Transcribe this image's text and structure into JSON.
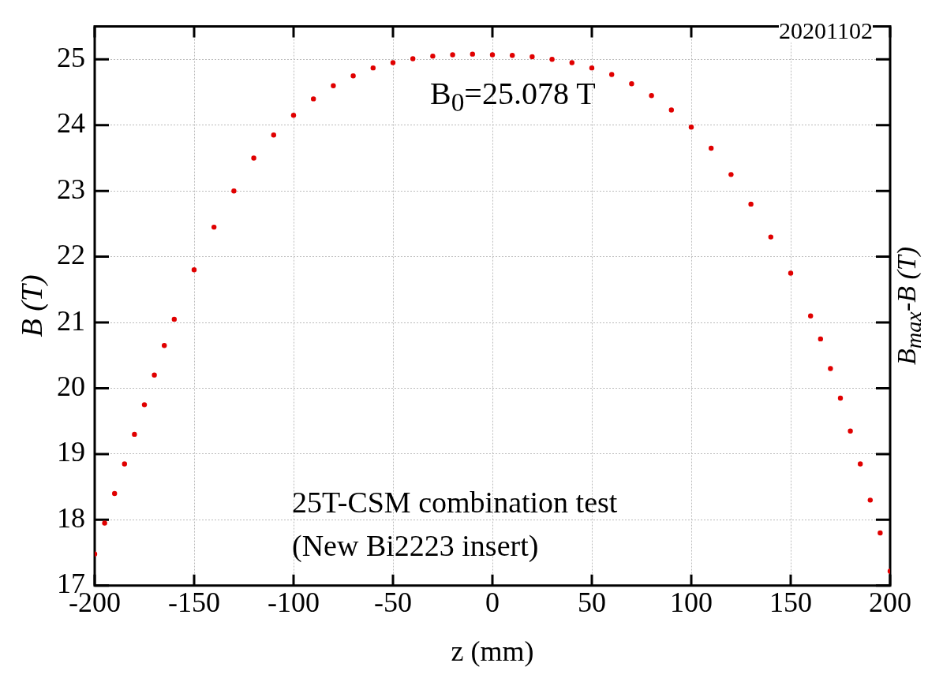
{
  "chart_data": {
    "type": "scatter",
    "xlabel": "z (mm)",
    "ylabel": "B (T)",
    "y2label": "B$_{max}$-B (T)",
    "annotations": [
      "B$_{0}$=25.078 T",
      "20201102",
      "25T-CSM combination test",
      "(New Bi2223 insert)"
    ],
    "x": [
      -200,
      -195,
      -190,
      -185,
      -180,
      -175,
      -170,
      -165,
      -160,
      -150,
      -140,
      -130,
      -120,
      -110,
      -100,
      -90,
      -80,
      -70,
      -60,
      -50,
      -40,
      -30,
      -20,
      -10,
      0,
      10,
      20,
      30,
      40,
      50,
      60,
      70,
      80,
      90,
      100,
      110,
      120,
      130,
      140,
      150,
      160,
      165,
      170,
      175,
      180,
      185,
      190,
      195,
      200
    ],
    "series": [
      {
        "color": "#e00000",
        "values": [
          17.48,
          17.95,
          18.4,
          18.85,
          19.3,
          19.75,
          20.2,
          20.65,
          21.05,
          21.8,
          22.45,
          23.0,
          23.5,
          23.85,
          24.15,
          24.4,
          24.6,
          24.75,
          24.87,
          24.95,
          25.01,
          25.05,
          25.07,
          25.08,
          25.07,
          25.06,
          25.04,
          25.0,
          24.95,
          24.87,
          24.77,
          24.63,
          24.45,
          24.23,
          23.97,
          23.65,
          23.25,
          22.8,
          22.3,
          21.75,
          21.1,
          20.75,
          20.3,
          19.85,
          19.35,
          18.85,
          18.3,
          17.8,
          17.22
        ]
      }
    ],
    "xlim": [
      -200,
      200
    ],
    "ylim": [
      17,
      25.5
    ],
    "xticks": [
      -200,
      -150,
      -100,
      -50,
      0,
      50,
      100,
      150,
      200
    ],
    "yticks": [
      17,
      18,
      19,
      20,
      21,
      22,
      23,
      24,
      25
    ],
    "grid": true,
    "legend": false,
    "marker": "circle"
  }
}
